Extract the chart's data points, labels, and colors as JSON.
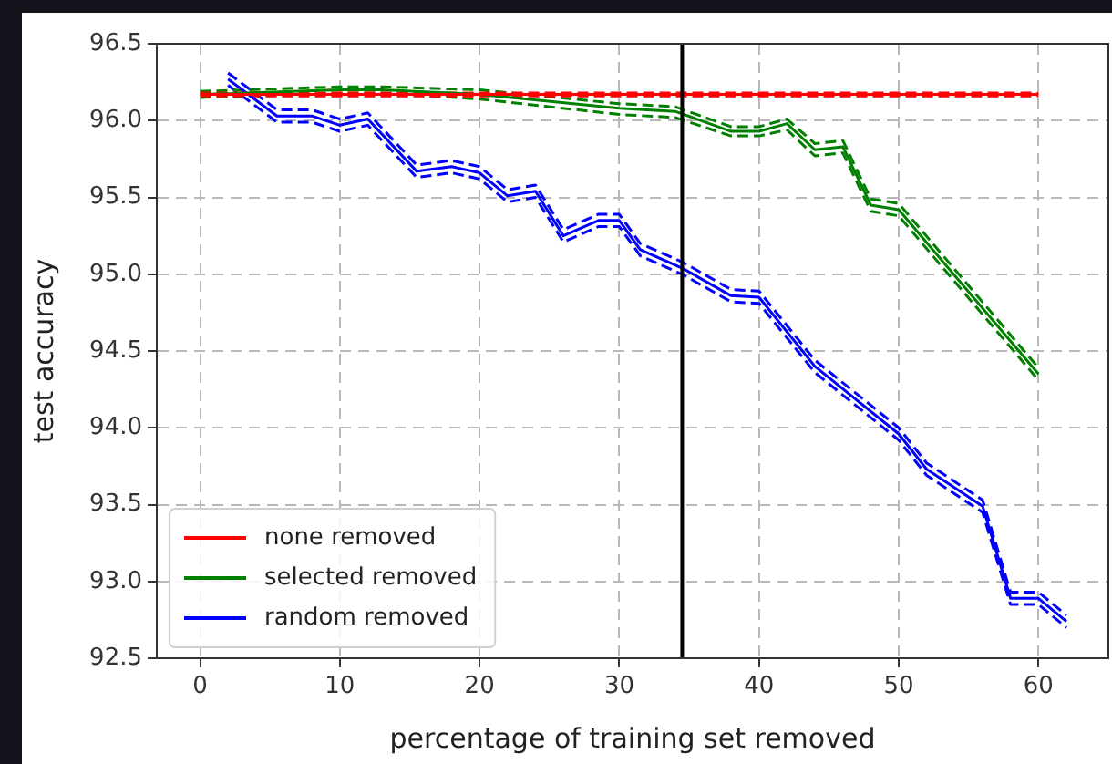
{
  "chart_data": {
    "type": "line",
    "xlabel": "percentage of training set removed",
    "ylabel": "test accuracy",
    "xlim": [
      -3.1,
      65
    ],
    "ylim": [
      92.5,
      96.5
    ],
    "xticks": [
      0,
      10,
      20,
      30,
      40,
      50,
      60
    ],
    "yticks": [
      92.5,
      {
        "value": 93,
        "label": "93.0"
      },
      93.5,
      {
        "value": 94,
        "label": "94.0"
      },
      94.5,
      {
        "value": 95,
        "label": "95.0"
      },
      95.5,
      {
        "value": 96,
        "label": "96.0"
      },
      96.5
    ],
    "grid": true,
    "legend": "bottom left",
    "line_style": "solid",
    "marker": "none",
    "ref_lines": [
      {
        "axis": "x",
        "value": 34.5,
        "color": "#000000"
      }
    ],
    "series": [
      {
        "name": "none removed",
        "color": "#ff0000",
        "x": [
          0,
          60
        ],
        "values": [
          96.17,
          96.17
        ]
      },
      {
        "name": "selected removed",
        "color": "#008000",
        "x": [
          0,
          10,
          13,
          20,
          30,
          34,
          38,
          40,
          42,
          44,
          46,
          48,
          50,
          60
        ],
        "values": [
          96.17,
          96.2,
          96.2,
          96.17,
          96.08,
          96.06,
          95.93,
          95.93,
          95.98,
          95.81,
          95.83,
          95.45,
          95.42,
          94.35
        ]
      },
      {
        "name": "random removed",
        "color": "#0000ff",
        "x": [
          2,
          5.5,
          8,
          10,
          12,
          15.5,
          18,
          20,
          22,
          24,
          26,
          28.5,
          30,
          31.5,
          34.5,
          38,
          40,
          44,
          50,
          52,
          56,
          58,
          60,
          62
        ],
        "values": [
          96.27,
          96.03,
          96.03,
          95.97,
          96.01,
          95.67,
          95.7,
          95.66,
          95.51,
          95.54,
          95.25,
          95.35,
          95.35,
          95.16,
          95.04,
          94.86,
          94.85,
          94.4,
          93.96,
          93.73,
          93.49,
          92.89,
          92.89,
          92.74
        ]
      },
      {
        "color": "#ff0000",
        "line_style": "dashed",
        "x": [
          0,
          60
        ],
        "values": [
          96.16,
          96.16
        ]
      },
      {
        "color": "#ff0000",
        "line_style": "dashed",
        "x": [
          0,
          60
        ],
        "values": [
          96.18,
          96.18
        ]
      },
      {
        "color": "#008000",
        "line_style": "dashed",
        "x": [
          0,
          10,
          13,
          20,
          30,
          34,
          38,
          40,
          42,
          44,
          46,
          48,
          50,
          60
        ],
        "values": [
          96.15,
          96.18,
          96.18,
          96.14,
          96.04,
          96.02,
          95.9,
          95.9,
          95.94,
          95.77,
          95.79,
          95.41,
          95.38,
          94.31
        ]
      },
      {
        "color": "#008000",
        "line_style": "dashed",
        "x": [
          0,
          10,
          13,
          20,
          30,
          34,
          38,
          40,
          42,
          44,
          46,
          48,
          50,
          60
        ],
        "values": [
          96.19,
          96.22,
          96.22,
          96.2,
          96.11,
          96.09,
          95.96,
          95.96,
          96.01,
          95.85,
          95.87,
          95.49,
          95.46,
          94.39
        ]
      },
      {
        "color": "#0000ff",
        "line_style": "dashed",
        "x": [
          2,
          5.5,
          8,
          10,
          12,
          15.5,
          18,
          20,
          22,
          24,
          26,
          28.5,
          30,
          31.5,
          34.5,
          38,
          40,
          44,
          50,
          52,
          56,
          58,
          60,
          62
        ],
        "values": [
          96.23,
          95.99,
          95.99,
          95.93,
          95.97,
          95.63,
          95.66,
          95.62,
          95.47,
          95.5,
          95.21,
          95.31,
          95.31,
          95.12,
          95.0,
          94.82,
          94.81,
          94.36,
          93.92,
          93.69,
          93.45,
          92.85,
          92.85,
          92.7
        ]
      },
      {
        "color": "#0000ff",
        "line_style": "dashed",
        "x": [
          2,
          5.5,
          8,
          10,
          12,
          15.5,
          18,
          20,
          22,
          24,
          26,
          28.5,
          30,
          31.5,
          34.5,
          38,
          40,
          44,
          50,
          52,
          56,
          58,
          60,
          62
        ],
        "values": [
          96.31,
          96.07,
          96.07,
          96.01,
          96.05,
          95.71,
          95.74,
          95.7,
          95.55,
          95.58,
          95.29,
          95.39,
          95.39,
          95.2,
          95.08,
          94.9,
          94.89,
          94.44,
          94.0,
          93.77,
          93.53,
          92.93,
          92.93,
          92.78
        ]
      }
    ]
  }
}
